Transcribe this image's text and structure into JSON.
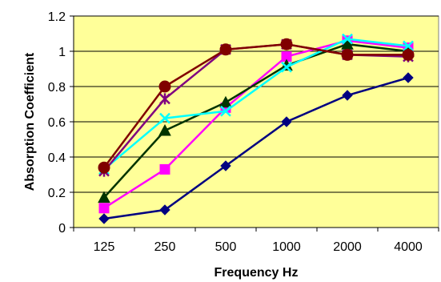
{
  "chart_data": {
    "type": "line",
    "title": "",
    "xlabel": "Frequency Hz",
    "ylabel": "Absorption Coefficient",
    "categories": [
      "125",
      "250",
      "500",
      "1000",
      "2000",
      "4000"
    ],
    "ylim": [
      0,
      1.2
    ],
    "yticks": [
      0,
      0.2,
      0.4,
      0.6,
      0.8,
      1,
      1.2
    ],
    "ytick_labels": [
      "0",
      "0.2",
      "0.4",
      "0.6",
      "0.8",
      "1",
      "1.2"
    ],
    "grid": "horizontal",
    "legend": "none",
    "plot_background": "#ffff99",
    "series": [
      {
        "marker": "diamond",
        "color": "#000080",
        "values": [
          0.05,
          0.1,
          0.35,
          0.6,
          0.75,
          0.85
        ]
      },
      {
        "marker": "square",
        "color": "#ff00ff",
        "values": [
          0.11,
          0.33,
          0.68,
          0.97,
          1.06,
          1.02
        ]
      },
      {
        "marker": "triangle",
        "color": "#003300",
        "values": [
          0.17,
          0.55,
          0.71,
          0.92,
          1.04,
          1.0
        ]
      },
      {
        "marker": "x",
        "color": "#00ffff",
        "values": [
          0.33,
          0.62,
          0.66,
          0.91,
          1.07,
          1.03
        ]
      },
      {
        "marker": "star",
        "color": "#800080",
        "values": [
          0.32,
          0.73,
          1.01,
          1.04,
          0.98,
          0.97
        ]
      },
      {
        "marker": "circle",
        "color": "#800000",
        "values": [
          0.34,
          0.8,
          1.01,
          1.04,
          0.98,
          0.98
        ]
      }
    ]
  }
}
